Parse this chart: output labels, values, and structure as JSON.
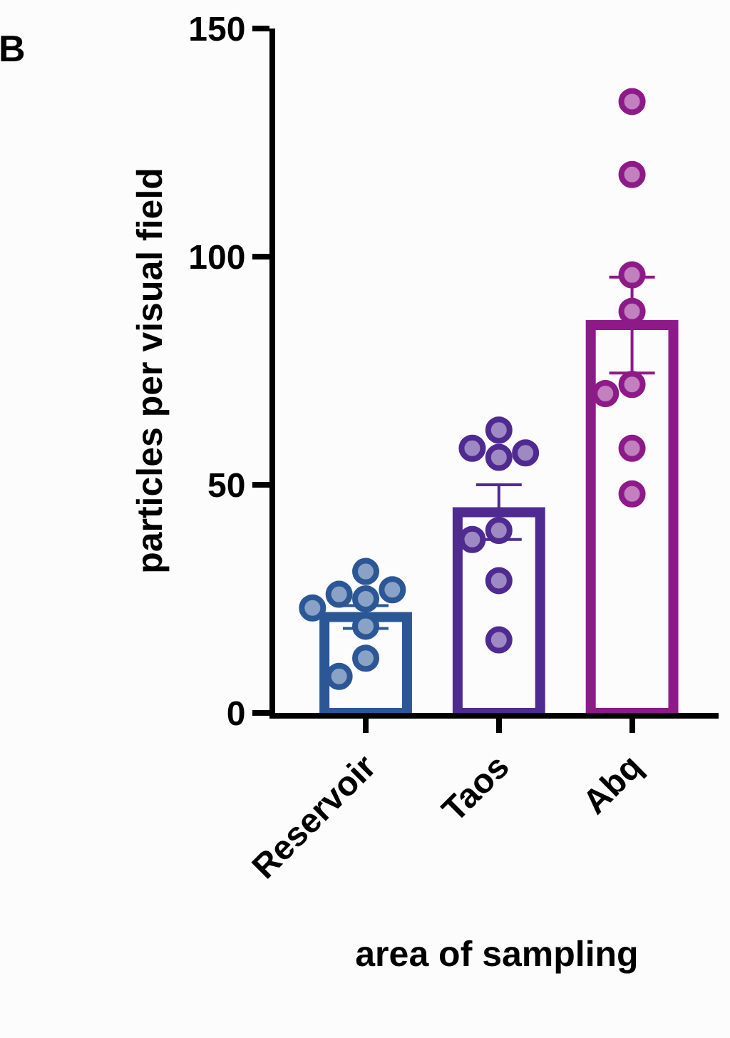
{
  "chart_data": {
    "type": "bar",
    "title": "B",
    "xlabel": "area of sampling",
    "ylabel": "particles per visual field",
    "categories": [
      "Reservoir",
      "Taos",
      "Abq"
    ],
    "ylim": [
      0,
      150
    ],
    "yticks": [
      0,
      50,
      100,
      150
    ],
    "series": [
      {
        "colors": [
          "#2b5797",
          "#4f2a91",
          "#8e1a8a"
        ],
        "values": [
          21,
          44,
          85
        ],
        "errors": [
          2.5,
          6,
          10.5
        ]
      },
      {
        "type": "scatter",
        "color": "#2b5797",
        "x": [
          "Reservoir",
          "Reservoir",
          "Reservoir",
          "Reservoir",
          "Reservoir",
          "Reservoir",
          "Reservoir",
          "Reservoir"
        ],
        "values": [
          31,
          26,
          25,
          27,
          23,
          19,
          12,
          8
        ]
      },
      {
        "type": "scatter",
        "color": "#4f2a91",
        "x": [
          "Taos",
          "Taos",
          "Taos",
          "Taos",
          "Taos",
          "Taos",
          "Taos",
          "Taos"
        ],
        "values": [
          62,
          58,
          57,
          56,
          40,
          38,
          29,
          16
        ]
      },
      {
        "type": "scatter",
        "color": "#8e1a8a",
        "x": [
          "Abq",
          "Abq",
          "Abq",
          "Abq",
          "Abq",
          "Abq",
          "Abq",
          "Abq"
        ],
        "values": [
          134,
          118,
          96,
          88,
          72,
          70,
          58,
          48
        ]
      }
    ]
  }
}
